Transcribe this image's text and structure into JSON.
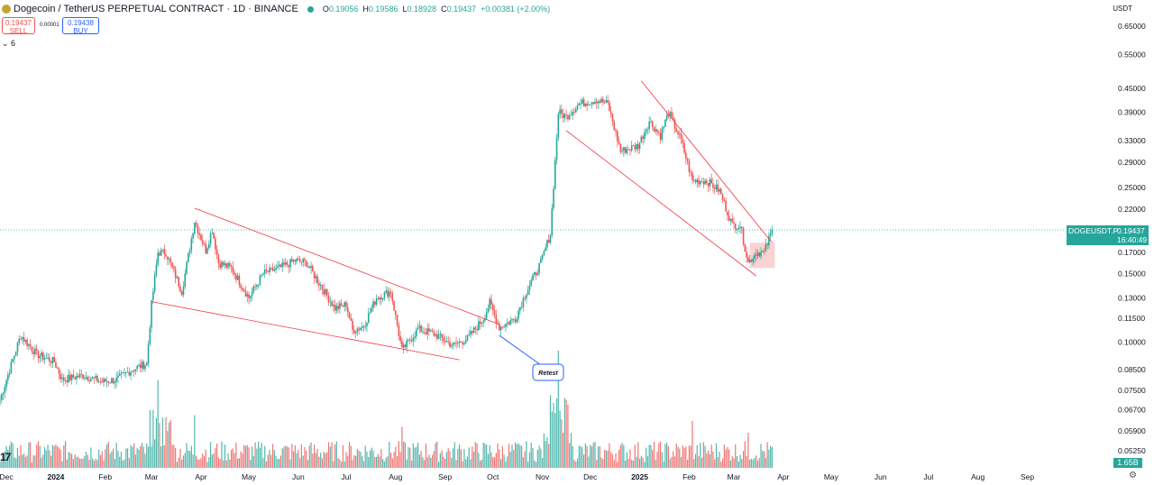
{
  "header": {
    "symbol": "Dogecoin / TetherUS PERPETUAL CONTRACT · 1D · BINANCE",
    "o_key": "O",
    "o_val": "0.19056",
    "h_key": "H",
    "h_val": "0.19586",
    "l_key": "L",
    "l_val": "0.18928",
    "c_key": "C",
    "c_val": "0.19437",
    "change": "+0.00381 (+2.00%)"
  },
  "trade": {
    "sell_price": "0.19437",
    "sell_label": "SELL",
    "spread": "0.00001",
    "buy_price": "0.19438",
    "buy_label": "BUY",
    "collapse": "6"
  },
  "currency": "USDT",
  "price_label": {
    "symbol": "DOGEUSDT.P",
    "price": "0.19437",
    "countdown": "16:40:49"
  },
  "volume_label": "1.65B",
  "watermark": "17",
  "annotation": "Retest",
  "colors": {
    "up": "#26a69a",
    "down": "#ef5350",
    "line": "#f23645",
    "zone": "#f8c8c8",
    "callout": "#2962ff"
  },
  "chart_data": {
    "type": "candlestick",
    "y_scale": "log",
    "y_ticks": [
      "0.65000",
      "0.55000",
      "0.45000",
      "0.39000",
      "0.33000",
      "0.29000",
      "0.25000",
      "0.22000",
      "0.17000",
      "0.15000",
      "0.13000",
      "0.11500",
      "0.10000",
      "0.08500",
      "0.07500",
      "0.06700",
      "0.05900",
      "0.05250"
    ],
    "x_ticks": [
      "Dec",
      "2024",
      "Feb",
      "Mar",
      "Apr",
      "May",
      "Jun",
      "Jul",
      "Aug",
      "Sep",
      "Oct",
      "Nov",
      "Dec",
      "2025",
      "Feb",
      "Mar",
      "Apr",
      "May",
      "Jun",
      "Jul",
      "Aug",
      "Sep"
    ],
    "x_range": [
      "2023-11-27",
      "2025-09-25"
    ],
    "last_date": "2025-03-25",
    "last_price": 0.19437,
    "anchors": [
      [
        "2023-11-27",
        0.071
      ],
      [
        "2023-12-05",
        0.09
      ],
      [
        "2023-12-10",
        0.104
      ],
      [
        "2023-12-20",
        0.093
      ],
      [
        "2023-12-31",
        0.089
      ],
      [
        "2024-01-05",
        0.08
      ],
      [
        "2024-01-18",
        0.082
      ],
      [
        "2024-01-30",
        0.079
      ],
      [
        "2024-02-08",
        0.08
      ],
      [
        "2024-02-18",
        0.085
      ],
      [
        "2024-02-27",
        0.088
      ],
      [
        "2024-03-01",
        0.125
      ],
      [
        "2024-03-05",
        0.17
      ],
      [
        "2024-03-10",
        0.17
      ],
      [
        "2024-03-20",
        0.135
      ],
      [
        "2024-03-28",
        0.205
      ],
      [
        "2024-04-04",
        0.172
      ],
      [
        "2024-04-08",
        0.195
      ],
      [
        "2024-04-12",
        0.16
      ],
      [
        "2024-04-20",
        0.155
      ],
      [
        "2024-05-01",
        0.13
      ],
      [
        "2024-05-10",
        0.15
      ],
      [
        "2024-05-20",
        0.155
      ],
      [
        "2024-05-30",
        0.162
      ],
      [
        "2024-06-06",
        0.16
      ],
      [
        "2024-06-15",
        0.14
      ],
      [
        "2024-06-24",
        0.122
      ],
      [
        "2024-07-01",
        0.125
      ],
      [
        "2024-07-05",
        0.107
      ],
      [
        "2024-07-12",
        0.11
      ],
      [
        "2024-07-20",
        0.13
      ],
      [
        "2024-07-29",
        0.135
      ],
      [
        "2024-08-05",
        0.095
      ],
      [
        "2024-08-15",
        0.108
      ],
      [
        "2024-08-25",
        0.105
      ],
      [
        "2024-09-06",
        0.098
      ],
      [
        "2024-09-15",
        0.102
      ],
      [
        "2024-09-25",
        0.115
      ],
      [
        "2024-09-29",
        0.126
      ],
      [
        "2024-10-05",
        0.109
      ],
      [
        "2024-10-15",
        0.115
      ],
      [
        "2024-10-22",
        0.135
      ],
      [
        "2024-10-31",
        0.16
      ],
      [
        "2024-11-06",
        0.19
      ],
      [
        "2024-11-11",
        0.39
      ],
      [
        "2024-11-16",
        0.38
      ],
      [
        "2024-11-24",
        0.41
      ],
      [
        "2024-12-05",
        0.42
      ],
      [
        "2024-12-12",
        0.41
      ],
      [
        "2024-12-20",
        0.31
      ],
      [
        "2024-12-31",
        0.32
      ],
      [
        "2025-01-07",
        0.37
      ],
      [
        "2025-01-14",
        0.34
      ],
      [
        "2025-01-19",
        0.39
      ],
      [
        "2025-01-27",
        0.33
      ],
      [
        "2025-02-03",
        0.26
      ],
      [
        "2025-02-12",
        0.26
      ],
      [
        "2025-02-20",
        0.245
      ],
      [
        "2025-02-28",
        0.2
      ],
      [
        "2025-03-05",
        0.2
      ],
      [
        "2025-03-10",
        0.16
      ],
      [
        "2025-03-15",
        0.17
      ],
      [
        "2025-03-20",
        0.17
      ],
      [
        "2025-03-25",
        0.194
      ]
    ],
    "volume_scale": "1.65B",
    "volume_spikes": [
      [
        "2024-03-05",
        0.75
      ],
      [
        "2024-03-28",
        0.45
      ],
      [
        "2024-08-05",
        0.35
      ],
      [
        "2024-11-11",
        1.0
      ],
      [
        "2024-11-06",
        0.62
      ],
      [
        "2025-02-03",
        0.4
      ],
      [
        "2025-03-10",
        0.3
      ]
    ],
    "trendlines": [
      {
        "from": [
          "2024-03-28",
          0.221
        ],
        "to": [
          "2024-10-05",
          0.111
        ]
      },
      {
        "from": [
          "2024-03-01",
          0.127
        ],
        "to": [
          "2024-09-10",
          0.09
        ]
      },
      {
        "from": [
          "2024-11-16",
          0.35
        ],
        "to": [
          "2025-03-15",
          0.148
        ]
      },
      {
        "from": [
          "2025-01-02",
          0.47
        ],
        "to": [
          "2025-03-25",
          0.18
        ]
      }
    ],
    "zone": {
      "from": "2025-03-11",
      "to": "2025-03-25",
      "low": 0.155,
      "high": 0.18
    }
  }
}
